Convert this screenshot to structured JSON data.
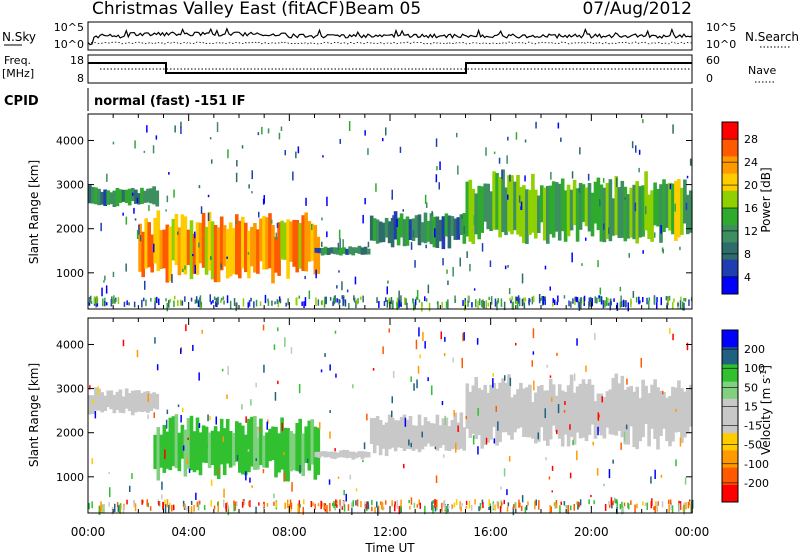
{
  "header": {
    "title": "Christmas Valley East (fitACF)",
    "beam": "Beam 05",
    "date": "07/Aug/2012"
  },
  "noise_panel": {
    "left_label": "N.Sky",
    "right_label": "N.Search",
    "left_ticks": [
      "10^5",
      "10^0"
    ],
    "right_ticks": [
      "10^5",
      "10^0"
    ]
  },
  "freq_panel": {
    "left_label_1": "Freq.",
    "left_label_2": "[MHz]",
    "right_label": "Nave",
    "left_ticks": [
      "18",
      "8"
    ],
    "right_ticks": [
      "60",
      "0"
    ]
  },
  "cpid": {
    "label": "CPID",
    "value": "normal (fast) -151 IF"
  },
  "colors": {
    "power_scale": [
      "#0000ff",
      "#1f3fb0",
      "#2e6b6b",
      "#3d8f5f",
      "#2faa2f",
      "#8fd000",
      "#ffcc00",
      "#ff9900",
      "#ff5a00",
      "#ff0000"
    ],
    "velocity_scale": [
      "#ff0000",
      "#ff5a00",
      "#ff9900",
      "#ffcc00",
      "#c8c8c8",
      "#c8c8c8",
      "#80d080",
      "#30c030",
      "#206080",
      "#0000ff"
    ]
  },
  "chart_data": [
    {
      "type": "heatmap",
      "name": "power",
      "xlabel": "",
      "ylabel": "Slant Range [km]",
      "x_ticks": [
        "00:00",
        "04:00",
        "08:00",
        "12:00",
        "16:00",
        "20:00",
        "00:00"
      ],
      "y_ticks": [
        1000,
        2000,
        3000,
        4000
      ],
      "ylim": [
        180,
        4600
      ],
      "xlim_hours": [
        0,
        24
      ],
      "colorbar": {
        "label": "Power [dB]",
        "ticks": [
          4,
          8,
          12,
          16,
          20,
          24,
          28
        ]
      },
      "echo_bands_hours_km": [
        {
          "start": 0.0,
          "end": 2.8,
          "range_start": 2500,
          "range_end": 2950,
          "value": 10
        },
        {
          "start": 2.0,
          "end": 9.2,
          "range_start": 850,
          "range_end": 2300,
          "value": 22
        },
        {
          "start": 9.0,
          "end": 11.2,
          "range_start": 1400,
          "range_end": 1600,
          "value": 8
        },
        {
          "start": 11.2,
          "end": 15.0,
          "range_start": 1600,
          "range_end": 2400,
          "value": 10
        },
        {
          "start": 15.0,
          "end": 24.0,
          "range_start": 1700,
          "range_end": 3200,
          "value": 14
        }
      ]
    },
    {
      "type": "heatmap",
      "name": "velocity",
      "xlabel": "Time UT",
      "ylabel": "Slant Range [km]",
      "x_ticks": [
        "00:00",
        "04:00",
        "08:00",
        "12:00",
        "16:00",
        "20:00",
        "00:00"
      ],
      "y_ticks": [
        1000,
        2000,
        3000,
        4000
      ],
      "ylim": [
        180,
        4600
      ],
      "xlim_hours": [
        0,
        24
      ],
      "colorbar": {
        "label": "Velocity [m s^-1]",
        "ticks": [
          200,
          100,
          50,
          15,
          -15,
          -50,
          -100,
          -200
        ]
      },
      "echo_bands_hours_km": [
        {
          "start": 0.0,
          "end": 2.8,
          "range_start": 2400,
          "range_end": 3000,
          "value": 0
        },
        {
          "start": 2.6,
          "end": 9.2,
          "range_start": 1000,
          "range_end": 2300,
          "value": 40
        },
        {
          "start": 9.0,
          "end": 11.2,
          "range_start": 1400,
          "range_end": 1600,
          "value": 0
        },
        {
          "start": 11.2,
          "end": 15.0,
          "range_start": 1500,
          "range_end": 2400,
          "value": 0
        },
        {
          "start": 15.0,
          "end": 24.0,
          "range_start": 1700,
          "range_end": 3200,
          "value": 0
        }
      ]
    }
  ]
}
